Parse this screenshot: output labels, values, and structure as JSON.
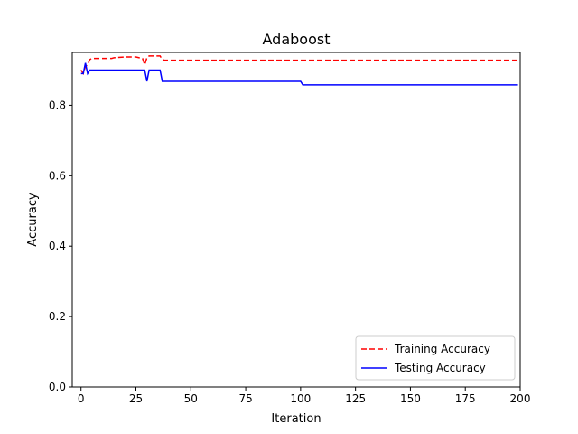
{
  "chart_data": {
    "type": "line",
    "title": "Adaboost",
    "xlabel": "Iteration",
    "ylabel": "Accuracy",
    "xlim": [
      -4,
      200
    ],
    "ylim": [
      0,
      0.95
    ],
    "xticks": [
      0,
      25,
      50,
      75,
      100,
      125,
      150,
      175,
      200
    ],
    "yticks": [
      0.0,
      0.2,
      0.4,
      0.6,
      0.8
    ],
    "ytick_labels": [
      "0.0",
      "0.2",
      "0.4",
      "0.6",
      "0.8"
    ],
    "grid": false,
    "legend_position": "lower-right",
    "series": [
      {
        "name": "Training Accuracy",
        "color": "#ff0000",
        "linestyle": "dashed",
        "x": [
          0,
          1,
          2,
          3,
          4,
          5,
          10,
          14,
          15,
          20,
          25,
          28,
          29,
          30,
          31,
          33,
          35,
          36,
          37,
          38,
          40,
          50,
          100,
          150,
          199
        ],
        "y": [
          0.9,
          0.89,
          0.91,
          0.915,
          0.93,
          0.933,
          0.933,
          0.933,
          0.935,
          0.937,
          0.937,
          0.933,
          0.915,
          0.935,
          0.94,
          0.94,
          0.94,
          0.94,
          0.93,
          0.928,
          0.928,
          0.928,
          0.928,
          0.928,
          0.928
        ]
      },
      {
        "name": "Testing Accuracy",
        "color": "#0000ff",
        "linestyle": "solid",
        "x": [
          0,
          1,
          2,
          3,
          4,
          5,
          10,
          20,
          29,
          30,
          31,
          35,
          36,
          37,
          40,
          50,
          100,
          101,
          150,
          199
        ],
        "y": [
          0.89,
          0.89,
          0.92,
          0.89,
          0.9,
          0.9,
          0.9,
          0.9,
          0.9,
          0.868,
          0.9,
          0.9,
          0.9,
          0.868,
          0.868,
          0.868,
          0.868,
          0.858,
          0.858,
          0.858
        ]
      }
    ]
  }
}
